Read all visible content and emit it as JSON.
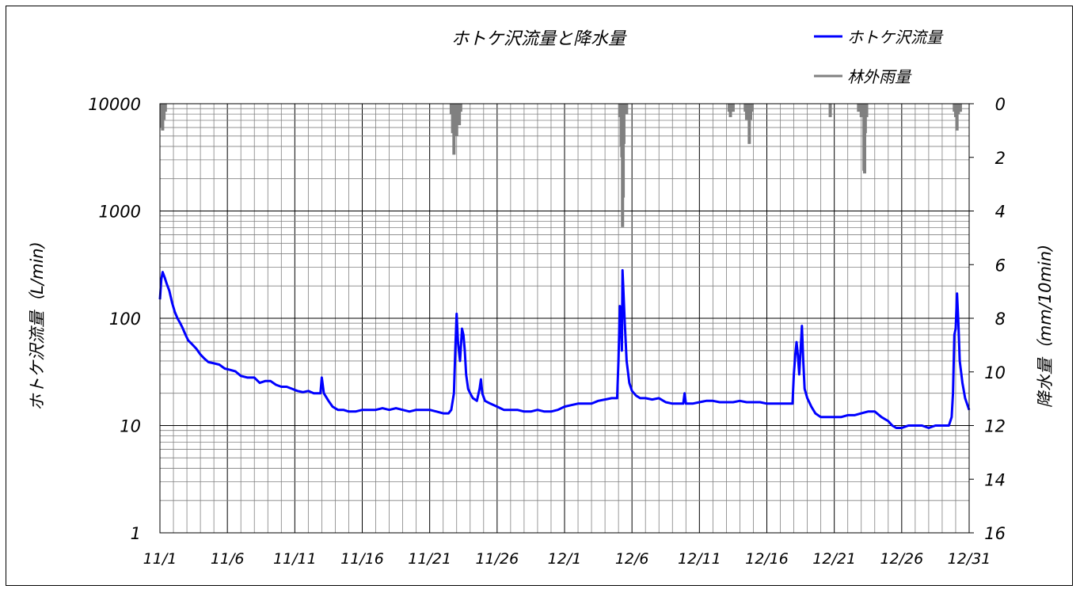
{
  "chart_data": {
    "type": "line",
    "title": "ホトケ沢流量と降水量",
    "ylabel_left": "ホトケ沢流量（L/min)",
    "ylabel_right": "降水量（mm/10min)",
    "y_left_scale": "log",
    "y_left_range": [
      1,
      10000
    ],
    "y_left_ticks": [
      "1",
      "10",
      "100",
      "1000",
      "10000"
    ],
    "y_right_range": [
      0,
      16
    ],
    "y_right_inverted": true,
    "y_right_ticks": [
      "0",
      "2",
      "4",
      "6",
      "8",
      "10",
      "12",
      "14",
      "16"
    ],
    "x_range_days": [
      0,
      60
    ],
    "x_tick_labels": [
      "11/1",
      "11/6",
      "11/11",
      "11/16",
      "11/21",
      "11/26",
      "12/1",
      "12/6",
      "12/11",
      "12/16",
      "12/21",
      "12/26",
      "12/31"
    ],
    "grid": true,
    "legend_position": "top-right",
    "series": [
      {
        "name": "ホトケ沢流量",
        "color": "#0000ff",
        "axis": "left",
        "points": [
          [
            0,
            150
          ],
          [
            0.1,
            230
          ],
          [
            0.2,
            270
          ],
          [
            0.35,
            240
          ],
          [
            0.5,
            210
          ],
          [
            0.7,
            180
          ],
          [
            0.9,
            140
          ],
          [
            1.1,
            115
          ],
          [
            1.3,
            100
          ],
          [
            1.5,
            90
          ],
          [
            1.7,
            80
          ],
          [
            1.9,
            70
          ],
          [
            2.1,
            62
          ],
          [
            2.4,
            57
          ],
          [
            2.7,
            52
          ],
          [
            3.0,
            46
          ],
          [
            3.3,
            42
          ],
          [
            3.6,
            39
          ],
          [
            4.0,
            38
          ],
          [
            4.4,
            37
          ],
          [
            4.8,
            34
          ],
          [
            5.2,
            33
          ],
          [
            5.6,
            32
          ],
          [
            6.0,
            29
          ],
          [
            6.5,
            28
          ],
          [
            7.0,
            28
          ],
          [
            7.4,
            25
          ],
          [
            7.8,
            26
          ],
          [
            8.2,
            26
          ],
          [
            8.6,
            24
          ],
          [
            9.0,
            23
          ],
          [
            9.4,
            23
          ],
          [
            9.8,
            22
          ],
          [
            10.2,
            21
          ],
          [
            10.6,
            20.5
          ],
          [
            11.0,
            21
          ],
          [
            11.4,
            20
          ],
          [
            11.7,
            20
          ],
          [
            11.9,
            20
          ],
          [
            12.0,
            28
          ],
          [
            12.15,
            20
          ],
          [
            12.5,
            17
          ],
          [
            12.8,
            15
          ],
          [
            13.2,
            14
          ],
          [
            13.6,
            14
          ],
          [
            14.0,
            13.5
          ],
          [
            14.5,
            13.5
          ],
          [
            15.0,
            14
          ],
          [
            15.5,
            14
          ],
          [
            16.0,
            14
          ],
          [
            16.5,
            14.5
          ],
          [
            17.0,
            14
          ],
          [
            17.5,
            14.5
          ],
          [
            18.0,
            14
          ],
          [
            18.5,
            13.5
          ],
          [
            19.0,
            14
          ],
          [
            19.5,
            14
          ],
          [
            20.0,
            14
          ],
          [
            20.5,
            13.5
          ],
          [
            21.0,
            13
          ],
          [
            21.4,
            13
          ],
          [
            21.6,
            14
          ],
          [
            21.8,
            20
          ],
          [
            21.9,
            50
          ],
          [
            22.0,
            110
          ],
          [
            22.1,
            60
          ],
          [
            22.25,
            40
          ],
          [
            22.4,
            80
          ],
          [
            22.5,
            70
          ],
          [
            22.6,
            50
          ],
          [
            22.7,
            30
          ],
          [
            22.85,
            22
          ],
          [
            23.0,
            20
          ],
          [
            23.2,
            18
          ],
          [
            23.5,
            17
          ],
          [
            23.7,
            22
          ],
          [
            23.8,
            27
          ],
          [
            23.9,
            20
          ],
          [
            24.1,
            17
          ],
          [
            24.5,
            16
          ],
          [
            25.0,
            15
          ],
          [
            25.5,
            14
          ],
          [
            26.0,
            14
          ],
          [
            26.5,
            14
          ],
          [
            27.0,
            13.5
          ],
          [
            27.5,
            13.5
          ],
          [
            28.0,
            14
          ],
          [
            28.5,
            13.5
          ],
          [
            29.0,
            13.5
          ],
          [
            29.5,
            14
          ],
          [
            30.0,
            15
          ],
          [
            30.5,
            15.5
          ],
          [
            31.0,
            16
          ],
          [
            31.5,
            16
          ],
          [
            32.0,
            16
          ],
          [
            32.5,
            17
          ],
          [
            33.0,
            17.5
          ],
          [
            33.5,
            18
          ],
          [
            33.9,
            18
          ],
          [
            34.0,
            40
          ],
          [
            34.1,
            130
          ],
          [
            34.2,
            80
          ],
          [
            34.25,
            50
          ],
          [
            34.3,
            280
          ],
          [
            34.35,
            200
          ],
          [
            34.45,
            100
          ],
          [
            34.6,
            40
          ],
          [
            34.8,
            25
          ],
          [
            35.0,
            21
          ],
          [
            35.3,
            19
          ],
          [
            35.6,
            18
          ],
          [
            36.0,
            18
          ],
          [
            36.5,
            17.5
          ],
          [
            37.0,
            18
          ],
          [
            37.5,
            16.5
          ],
          [
            38.0,
            16
          ],
          [
            38.5,
            16
          ],
          [
            38.8,
            16
          ],
          [
            38.9,
            20
          ],
          [
            39.0,
            16
          ],
          [
            39.5,
            16
          ],
          [
            40.0,
            16.5
          ],
          [
            40.5,
            17
          ],
          [
            41.0,
            17
          ],
          [
            41.5,
            16.5
          ],
          [
            42.0,
            16.5
          ],
          [
            42.5,
            16.5
          ],
          [
            43.0,
            17
          ],
          [
            43.5,
            16.5
          ],
          [
            44.0,
            16.5
          ],
          [
            44.5,
            16.5
          ],
          [
            45.0,
            16
          ],
          [
            45.5,
            16
          ],
          [
            46.0,
            16
          ],
          [
            46.5,
            16
          ],
          [
            46.9,
            16
          ],
          [
            47.0,
            30
          ],
          [
            47.1,
            45
          ],
          [
            47.2,
            60
          ],
          [
            47.3,
            45
          ],
          [
            47.4,
            30
          ],
          [
            47.5,
            50
          ],
          [
            47.6,
            85
          ],
          [
            47.7,
            40
          ],
          [
            47.8,
            22
          ],
          [
            48.0,
            18
          ],
          [
            48.3,
            15
          ],
          [
            48.6,
            13
          ],
          [
            49.0,
            12
          ],
          [
            49.5,
            12
          ],
          [
            50.0,
            12
          ],
          [
            50.5,
            12
          ],
          [
            51.0,
            12.5
          ],
          [
            51.5,
            12.5
          ],
          [
            52.0,
            13
          ],
          [
            52.5,
            13.5
          ],
          [
            53.0,
            13.5
          ],
          [
            53.5,
            12
          ],
          [
            54.0,
            11
          ],
          [
            54.3,
            10
          ],
          [
            54.6,
            9.5
          ],
          [
            55.0,
            9.5
          ],
          [
            55.5,
            10
          ],
          [
            56.0,
            10
          ],
          [
            56.5,
            10
          ],
          [
            57.0,
            9.5
          ],
          [
            57.5,
            10
          ],
          [
            58.0,
            10
          ],
          [
            58.3,
            10
          ],
          [
            58.5,
            10
          ],
          [
            58.7,
            12
          ],
          [
            58.8,
            20
          ],
          [
            58.9,
            70
          ],
          [
            59.0,
            80
          ],
          [
            59.1,
            170
          ],
          [
            59.2,
            90
          ],
          [
            59.3,
            40
          ],
          [
            59.5,
            25
          ],
          [
            59.7,
            18
          ],
          [
            60.0,
            14
          ]
        ]
      },
      {
        "name": "林外雨量",
        "color": "#808080",
        "axis": "right",
        "bars": [
          [
            0.1,
            0.9
          ],
          [
            0.2,
            1.0
          ],
          [
            0.3,
            0.6
          ],
          [
            0.4,
            0.3
          ],
          [
            21.6,
            0.4
          ],
          [
            21.7,
            1.1
          ],
          [
            21.8,
            1.9
          ],
          [
            21.9,
            0.6
          ],
          [
            22.0,
            1.2
          ],
          [
            22.1,
            0.4
          ],
          [
            22.2,
            0.8
          ],
          [
            22.3,
            0.3
          ],
          [
            34.1,
            0.5
          ],
          [
            34.2,
            1.6
          ],
          [
            34.25,
            2.0
          ],
          [
            34.3,
            4.6
          ],
          [
            34.35,
            3.5
          ],
          [
            34.4,
            1.5
          ],
          [
            34.6,
            0.4
          ],
          [
            42.2,
            0.3
          ],
          [
            42.3,
            0.5
          ],
          [
            42.5,
            0.3
          ],
          [
            43.4,
            0.3
          ],
          [
            43.5,
            0.6
          ],
          [
            43.6,
            0.6
          ],
          [
            43.7,
            1.5
          ],
          [
            43.8,
            0.6
          ],
          [
            43.9,
            0.3
          ],
          [
            49.7,
            0.5
          ],
          [
            51.8,
            0.3
          ],
          [
            52.0,
            0.5
          ],
          [
            52.2,
            2.5
          ],
          [
            52.25,
            2.6
          ],
          [
            52.3,
            1.1
          ],
          [
            52.4,
            0.5
          ],
          [
            58.9,
            0.3
          ],
          [
            59.0,
            0.5
          ],
          [
            59.1,
            1.0
          ],
          [
            59.2,
            0.4
          ],
          [
            59.35,
            0.3
          ]
        ]
      }
    ]
  }
}
